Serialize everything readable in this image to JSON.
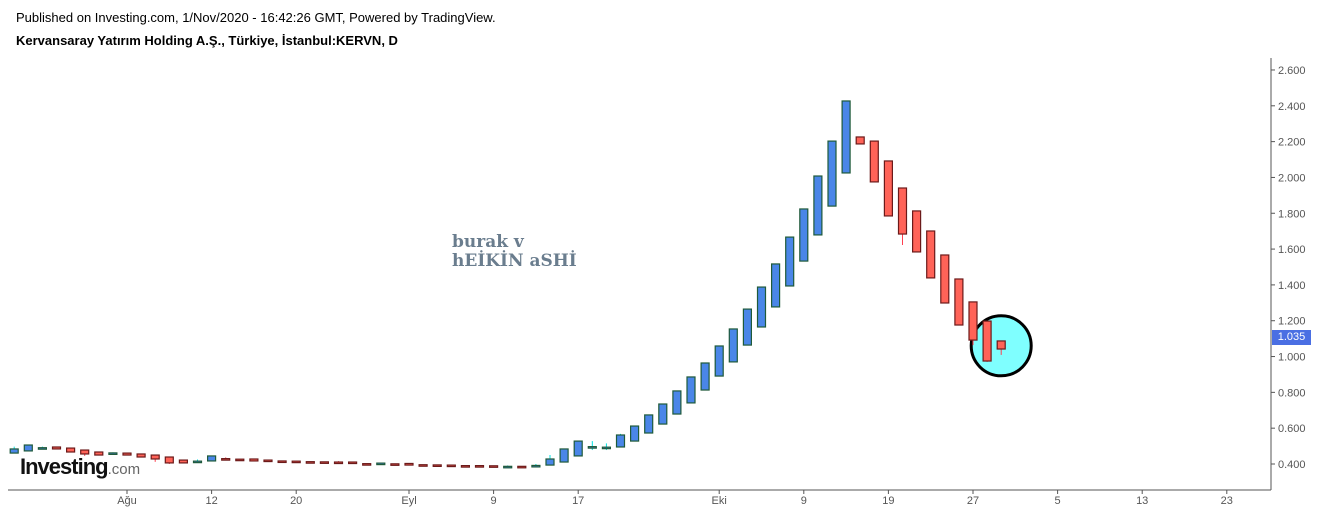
{
  "header": {
    "published": "Published on Investing.com, 1/Nov/2020 - 16:42:26 GMT, Powered by TradingView.",
    "title": "Kervansaray Yatırım Holding A.Ş., Türkiye, İstanbul:KERVN, D"
  },
  "annotation": {
    "line1": "burak v",
    "line2": "hEİKİN aSHİ"
  },
  "logo": {
    "main": "Investing",
    "domain": ".com"
  },
  "colors": {
    "up_fill": "#4a86e8",
    "up_border": "#1f5a3a",
    "up_wick": "#00e0e0",
    "down_fill": "#ff6358",
    "down_border": "#6b1a1a",
    "down_wick": "#ff4050",
    "highlight_circle": "#7fffff",
    "price_label": "#4a6fe3"
  },
  "chart_data": {
    "type": "candlestick-heikin-ashi",
    "symbol": "KERVN",
    "interval": "D",
    "current_price": "1.035",
    "ylim": [
      0.3,
      2.65
    ],
    "y_ticks": [
      "0.400",
      "0.600",
      "0.800",
      "1.000",
      "1.200",
      "1.400",
      "1.600",
      "1.800",
      "2.000",
      "2.200",
      "2.400",
      "2.600"
    ],
    "x_ticks": [
      {
        "label": "Ağu",
        "date": "2020-08-04"
      },
      {
        "label": "12",
        "date": "2020-08-12"
      },
      {
        "label": "20",
        "date": "2020-08-20"
      },
      {
        "label": "Eyl",
        "date": "2020-09-01"
      },
      {
        "label": "9",
        "date": "2020-09-09"
      },
      {
        "label": "17",
        "date": "2020-09-17"
      },
      {
        "label": "Eki",
        "date": "2020-10-01"
      },
      {
        "label": "9",
        "date": "2020-10-09"
      },
      {
        "label": "19",
        "date": "2020-10-19"
      },
      {
        "label": "27",
        "date": "2020-10-27"
      },
      {
        "label": "5",
        "date": "2020-11-05"
      },
      {
        "label": "13",
        "date": "2020-11-13"
      },
      {
        "label": "23",
        "date": "2020-11-23"
      }
    ],
    "highlight": {
      "shape": "circle",
      "date": "2020-10-30",
      "value": 1.06
    },
    "columns": [
      "date",
      "open",
      "high",
      "low",
      "close"
    ],
    "candles": [
      [
        "2020-07-21",
        0.461,
        0.497,
        0.461,
        0.484
      ],
      [
        "2020-07-22",
        0.473,
        0.506,
        0.473,
        0.506
      ],
      [
        "2020-07-23",
        0.488,
        0.497,
        0.488,
        0.491
      ],
      [
        "2020-07-24",
        0.495,
        0.495,
        0.484,
        0.484
      ],
      [
        "2020-07-27",
        0.489,
        0.489,
        0.467,
        0.467
      ],
      [
        "2020-07-28",
        0.478,
        0.478,
        0.445,
        0.456
      ],
      [
        "2020-07-29",
        0.467,
        0.467,
        0.45,
        0.45
      ],
      [
        "2020-07-30",
        0.46,
        0.465,
        0.46,
        0.462
      ],
      [
        "2020-08-04",
        0.461,
        0.461,
        0.45,
        0.45
      ],
      [
        "2020-08-05",
        0.456,
        0.456,
        0.439,
        0.439
      ],
      [
        "2020-08-06",
        0.45,
        0.45,
        0.412,
        0.428
      ],
      [
        "2020-08-07",
        0.439,
        0.439,
        0.4,
        0.406
      ],
      [
        "2020-08-10",
        0.422,
        0.422,
        0.406,
        0.406
      ],
      [
        "2020-08-11",
        0.413,
        0.425,
        0.413,
        0.416
      ],
      [
        "2020-08-12",
        0.417,
        0.445,
        0.417,
        0.445
      ],
      [
        "2020-08-13",
        0.43,
        0.437,
        0.427,
        0.427
      ],
      [
        "2020-08-14",
        0.427,
        0.427,
        0.423,
        0.423
      ],
      [
        "2020-08-17",
        0.428,
        0.428,
        0.417,
        0.417
      ],
      [
        "2020-08-18",
        0.422,
        0.422,
        0.418,
        0.418
      ],
      [
        "2020-08-19",
        0.417,
        0.417,
        0.415,
        0.415
      ],
      [
        "2020-08-20",
        0.416,
        0.416,
        0.414,
        0.414
      ],
      [
        "2020-08-21",
        0.413,
        0.413,
        0.41,
        0.41
      ],
      [
        "2020-08-24",
        0.412,
        0.412,
        0.409,
        0.409
      ],
      [
        "2020-08-25",
        0.411,
        0.416,
        0.408,
        0.408
      ],
      [
        "2020-08-26",
        0.411,
        0.411,
        0.403,
        0.403
      ],
      [
        "2020-08-27",
        0.402,
        0.402,
        0.399,
        0.399
      ],
      [
        "2020-08-28",
        0.403,
        0.405,
        0.403,
        0.405
      ],
      [
        "2020-08-31",
        0.401,
        0.401,
        0.398,
        0.398
      ],
      [
        "2020-09-01",
        0.403,
        0.403,
        0.394,
        0.394
      ],
      [
        "2020-09-02",
        0.396,
        0.396,
        0.393,
        0.393
      ],
      [
        "2020-09-03",
        0.395,
        0.395,
        0.392,
        0.392
      ],
      [
        "2020-09-04",
        0.394,
        0.394,
        0.392,
        0.392
      ],
      [
        "2020-09-07",
        0.391,
        0.391,
        0.388,
        0.388
      ],
      [
        "2020-09-08",
        0.391,
        0.391,
        0.388,
        0.388
      ],
      [
        "2020-09-09",
        0.39,
        0.39,
        0.387,
        0.387
      ],
      [
        "2020-09-10",
        0.385,
        0.392,
        0.385,
        0.387
      ],
      [
        "2020-09-11",
        0.387,
        0.387,
        0.385,
        0.385
      ],
      [
        "2020-09-14",
        0.386,
        0.4,
        0.386,
        0.392
      ],
      [
        "2020-09-15",
        0.394,
        0.45,
        0.394,
        0.428
      ],
      [
        "2020-09-16",
        0.411,
        0.484,
        0.411,
        0.484
      ],
      [
        "2020-09-17",
        0.445,
        0.53,
        0.445,
        0.528
      ],
      [
        "2020-09-18",
        0.49,
        0.528,
        0.478,
        0.497
      ],
      [
        "2020-09-21",
        0.492,
        0.515,
        0.478,
        0.494
      ],
      [
        "2020-09-22",
        0.495,
        0.568,
        0.495,
        0.562
      ],
      [
        "2020-09-23",
        0.528,
        0.612,
        0.528,
        0.612
      ],
      [
        "2020-09-24",
        0.573,
        0.674,
        0.573,
        0.674
      ],
      [
        "2020-09-25",
        0.623,
        0.735,
        0.623,
        0.735
      ],
      [
        "2020-09-28",
        0.679,
        0.808,
        0.679,
        0.808
      ],
      [
        "2020-09-29",
        0.741,
        0.886,
        0.741,
        0.886
      ],
      [
        "2020-09-30",
        0.813,
        0.964,
        0.813,
        0.964
      ],
      [
        "2020-10-01",
        0.891,
        1.059,
        0.891,
        1.059
      ],
      [
        "2020-10-02",
        0.97,
        1.154,
        0.97,
        1.154
      ],
      [
        "2020-10-05",
        1.064,
        1.265,
        1.064,
        1.265
      ],
      [
        "2020-10-06",
        1.165,
        1.388,
        1.165,
        1.388
      ],
      [
        "2020-10-07",
        1.277,
        1.517,
        1.277,
        1.517
      ],
      [
        "2020-10-08",
        1.394,
        1.667,
        1.394,
        1.667
      ],
      [
        "2020-10-09",
        1.533,
        1.824,
        1.533,
        1.824
      ],
      [
        "2020-10-12",
        1.679,
        2.008,
        1.679,
        2.008
      ],
      [
        "2020-10-13",
        1.84,
        2.203,
        1.84,
        2.203
      ],
      [
        "2020-10-14",
        2.025,
        2.427,
        2.025,
        2.427
      ],
      [
        "2020-10-15",
        2.226,
        2.226,
        2.187,
        2.187
      ],
      [
        "2020-10-16",
        2.203,
        2.203,
        1.975,
        1.975
      ],
      [
        "2020-10-19",
        2.092,
        2.092,
        1.785,
        1.785
      ],
      [
        "2020-10-20",
        1.941,
        1.941,
        1.623,
        1.684
      ],
      [
        "2020-10-21",
        1.813,
        1.813,
        1.584,
        1.584
      ],
      [
        "2020-10-22",
        1.701,
        1.701,
        1.439,
        1.439
      ],
      [
        "2020-10-23",
        1.567,
        1.567,
        1.299,
        1.299
      ],
      [
        "2020-10-26",
        1.433,
        1.433,
        1.176,
        1.176
      ],
      [
        "2020-10-27",
        1.305,
        1.305,
        1.064,
        1.092
      ],
      [
        "2020-10-28",
        1.198,
        1.198,
        0.97,
        0.975
      ],
      [
        "2020-10-30",
        1.087,
        1.087,
        1.009,
        1.042
      ]
    ]
  }
}
